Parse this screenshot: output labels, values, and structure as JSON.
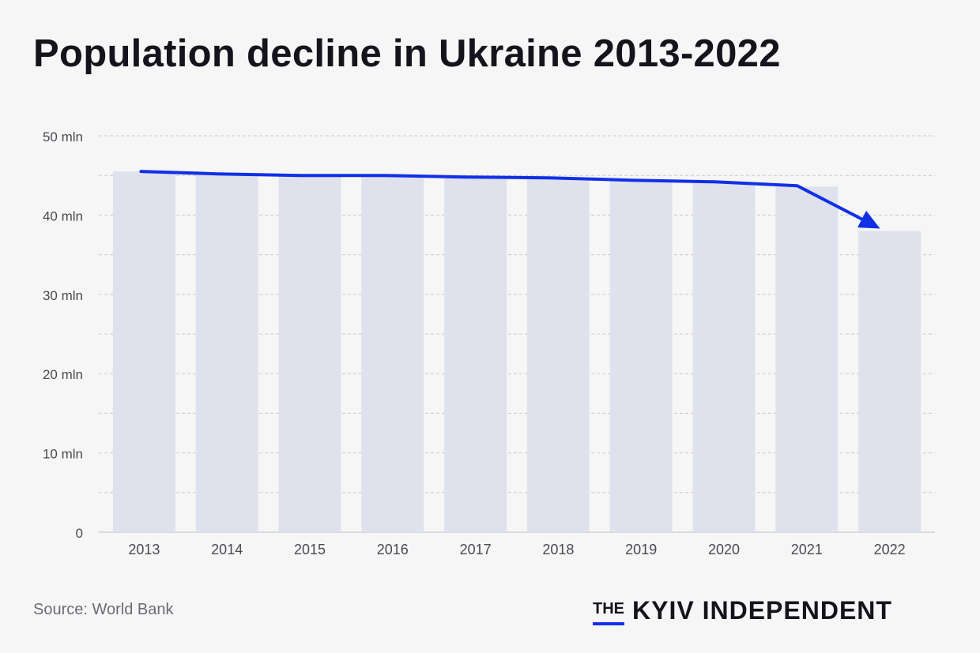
{
  "title": "Population decline in Ukraine 2013-2022",
  "source": "Source: World Bank",
  "logo": {
    "the": "THE",
    "name": "KYIV INDEPENDENT"
  },
  "colors": {
    "bar": "#dfe1ed",
    "line": "#1030e6",
    "grid": "#c9c9c9",
    "text": "#14141c",
    "axis_text": "#4a4a52"
  },
  "chart_data": {
    "type": "bar",
    "categories": [
      "2013",
      "2014",
      "2015",
      "2016",
      "2017",
      "2018",
      "2019",
      "2020",
      "2021",
      "2022"
    ],
    "values": [
      45.5,
      45.2,
      45.0,
      44.9,
      44.8,
      44.6,
      44.3,
      44.1,
      43.6,
      38.0
    ],
    "overlay": {
      "type": "line",
      "values": [
        45.5,
        45.2,
        45.0,
        45.0,
        44.8,
        44.7,
        44.4,
        44.2,
        43.7,
        38.3
      ],
      "arrow_end": true
    },
    "yticks": [
      0,
      10,
      20,
      30,
      40,
      50
    ],
    "ytick_labels": [
      "0",
      "10 mln",
      "20 mln",
      "30 mln",
      "40 mln",
      "50 mln"
    ],
    "ylim": [
      0,
      50
    ],
    "grid": true,
    "title": "Population decline in Ukraine 2013-2022",
    "xlabel": "",
    "ylabel": ""
  }
}
